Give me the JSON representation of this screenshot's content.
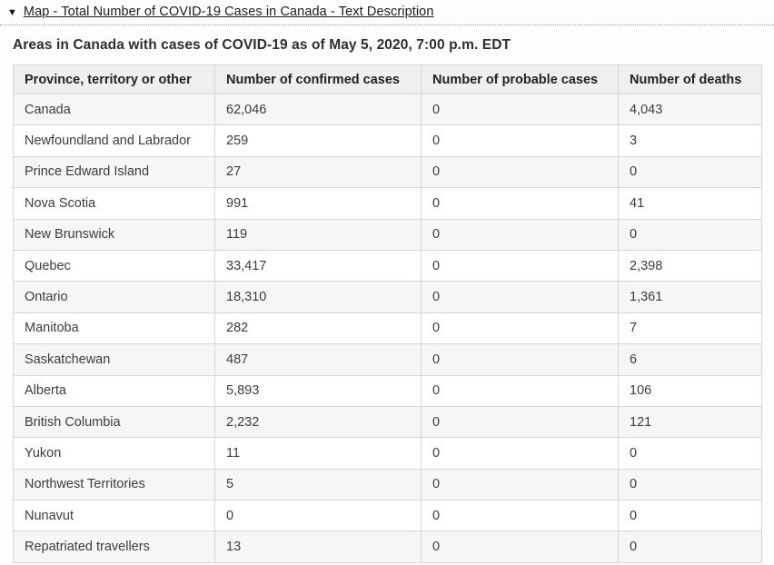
{
  "toggle": {
    "icon": "▼",
    "icon_name": "triangle-down-icon",
    "label": "Map - Total Number of COVID-19 Cases in Canada - Text Description"
  },
  "title": "Areas in Canada with cases of COVID-19 as of May 5, 2020, 7:00 p.m. EDT",
  "table": {
    "columns": [
      "Province, territory or other",
      "Number of confirmed cases",
      "Number of probable cases",
      "Number of deaths"
    ],
    "rows": [
      {
        "province": "Canada",
        "confirmed": "62,046",
        "probable": "0",
        "deaths": "4,043"
      },
      {
        "province": "Newfoundland and Labrador",
        "confirmed": "259",
        "probable": "0",
        "deaths": "3"
      },
      {
        "province": "Prince Edward Island",
        "confirmed": "27",
        "probable": "0",
        "deaths": "0"
      },
      {
        "province": "Nova Scotia",
        "confirmed": "991",
        "probable": "0",
        "deaths": "41"
      },
      {
        "province": "New Brunswick",
        "confirmed": "119",
        "probable": "0",
        "deaths": "0"
      },
      {
        "province": "Quebec",
        "confirmed": "33,417",
        "probable": "0",
        "deaths": "2,398"
      },
      {
        "province": "Ontario",
        "confirmed": "18,310",
        "probable": "0",
        "deaths": "1,361"
      },
      {
        "province": "Manitoba",
        "confirmed": "282",
        "probable": "0",
        "deaths": "7"
      },
      {
        "province": "Saskatchewan",
        "confirmed": "487",
        "probable": "0",
        "deaths": "6"
      },
      {
        "province": "Alberta",
        "confirmed": "5,893",
        "probable": "0",
        "deaths": "106"
      },
      {
        "province": "British Columbia",
        "confirmed": "2,232",
        "probable": "0",
        "deaths": "121"
      },
      {
        "province": "Yukon",
        "confirmed": "11",
        "probable": "0",
        "deaths": "0"
      },
      {
        "province": "Northwest Territories",
        "confirmed": "5",
        "probable": "0",
        "deaths": "0"
      },
      {
        "province": "Nunavut",
        "confirmed": "0",
        "probable": "0",
        "deaths": "0"
      },
      {
        "province": "Repatriated travellers",
        "confirmed": "13",
        "probable": "0",
        "deaths": "0"
      }
    ]
  },
  "colors": {
    "header_bg": "#efefef",
    "stripe_bg": "#f6f6f7",
    "border": "#d6d6d6",
    "text": "#3c3c3c"
  }
}
